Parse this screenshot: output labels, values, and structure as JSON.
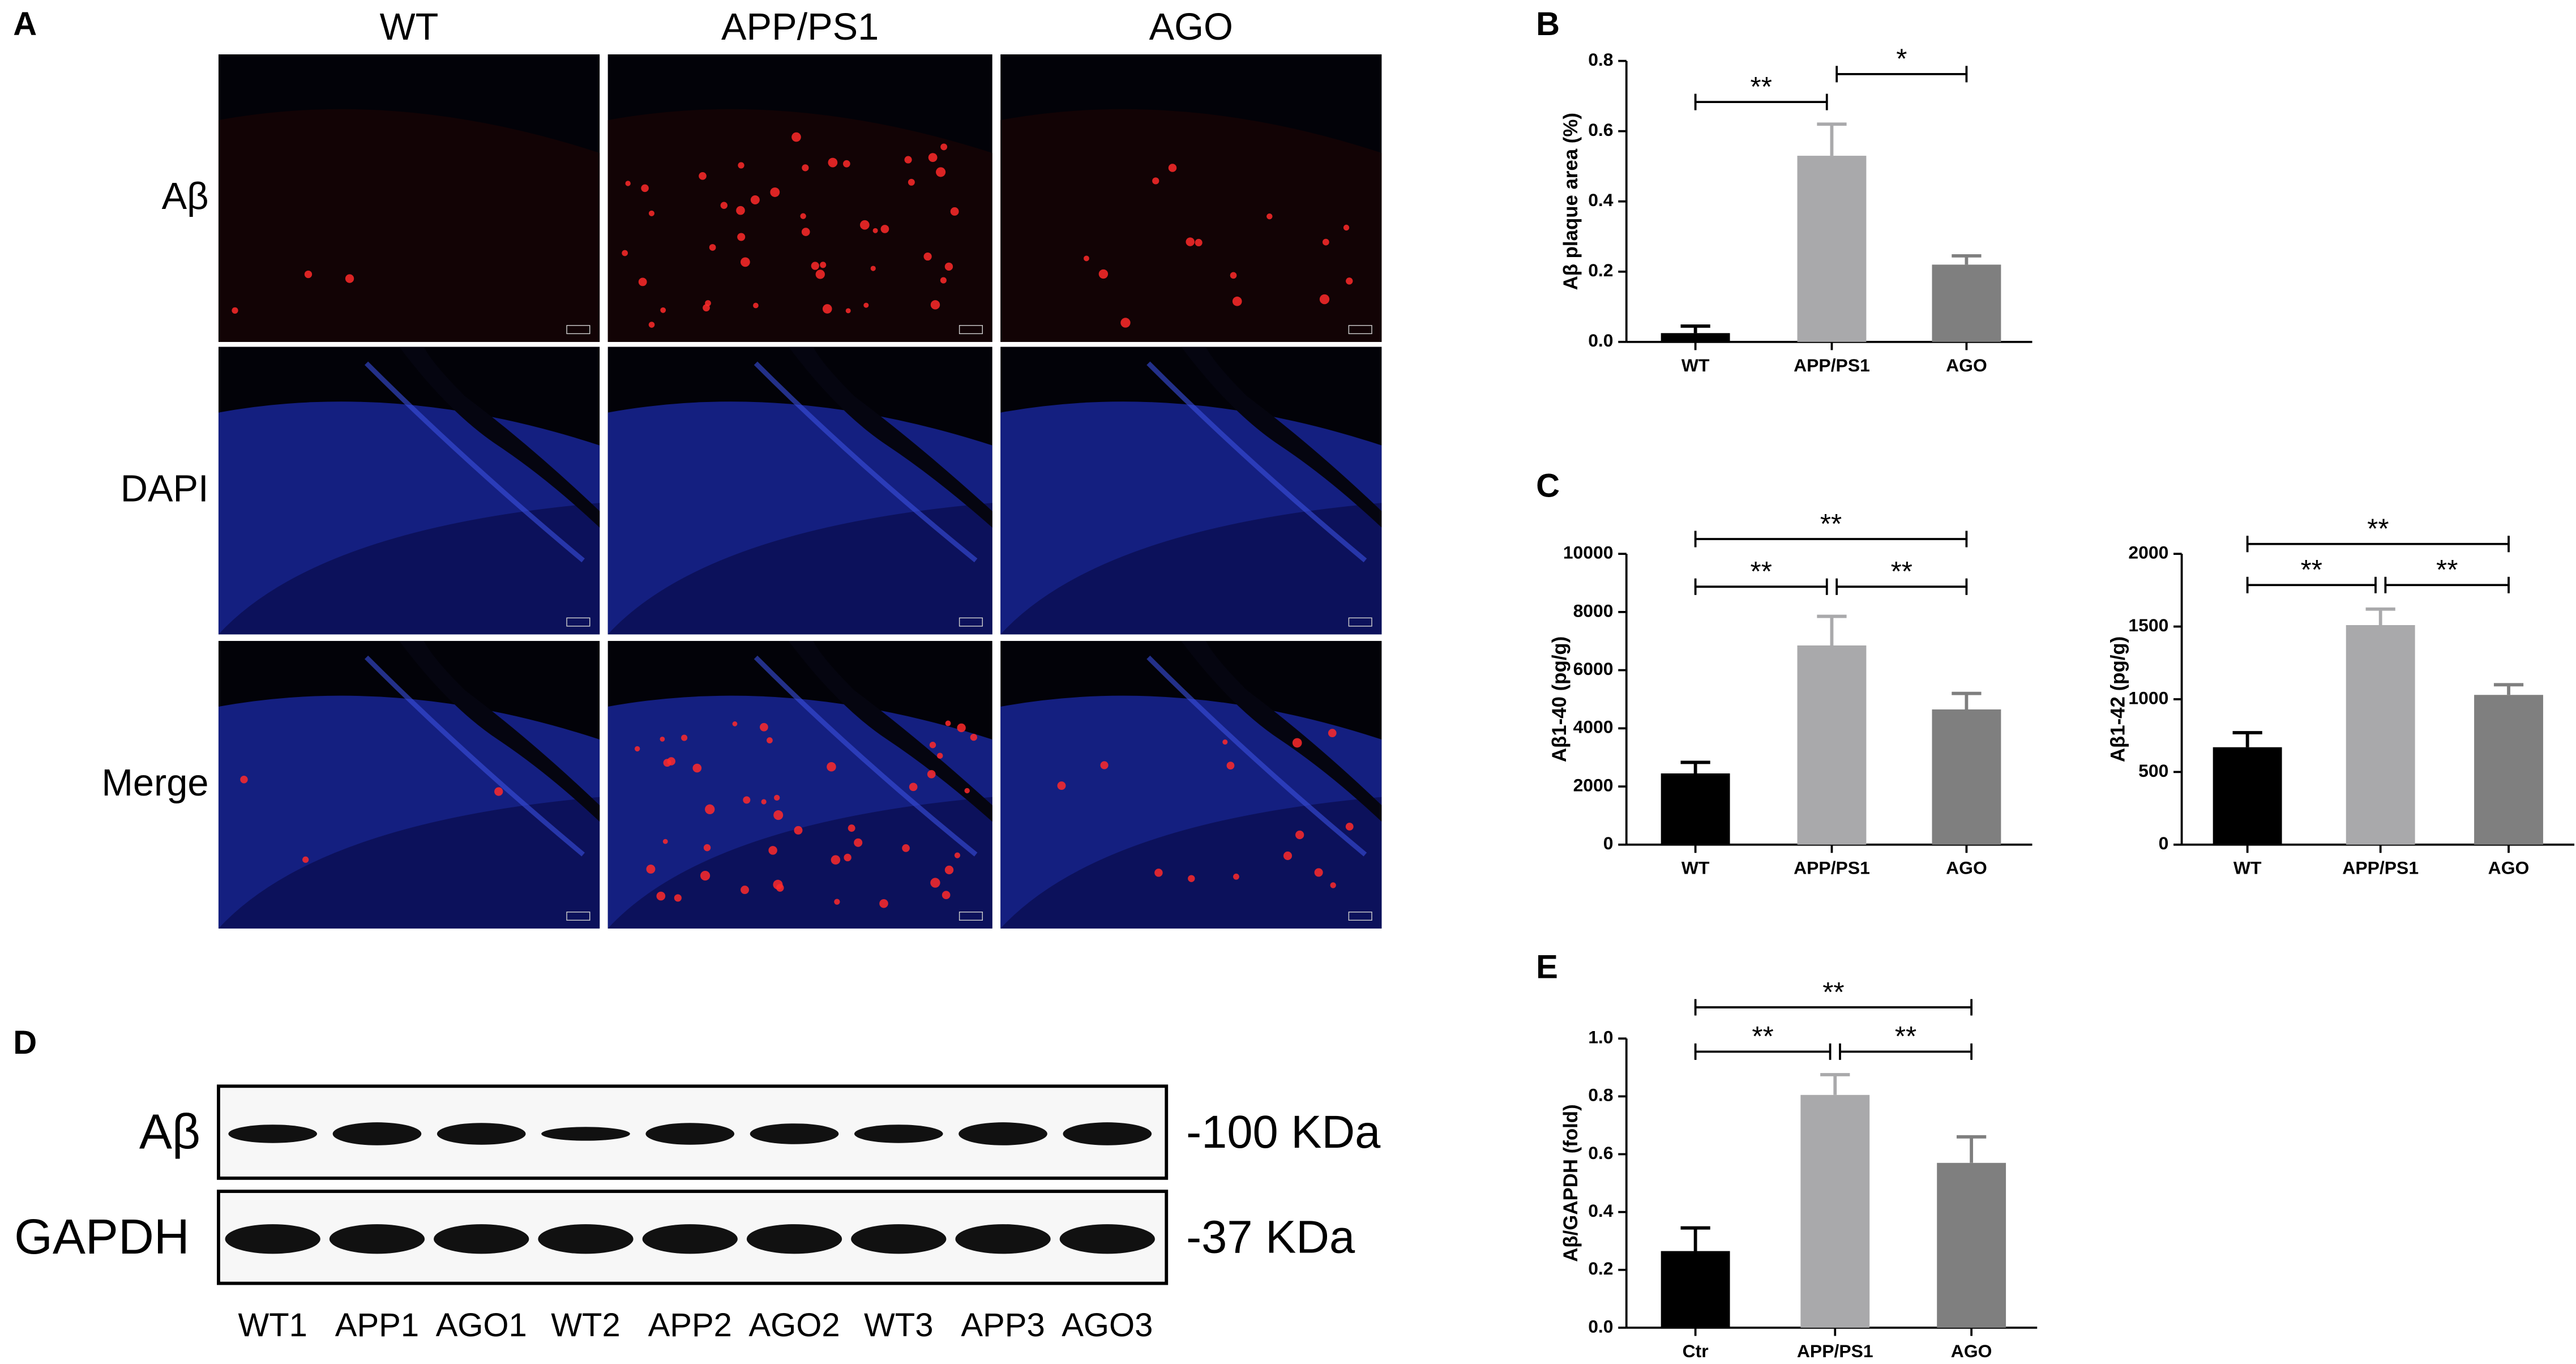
{
  "panels": {
    "a": "A",
    "b": "B",
    "c": "C",
    "d": "D",
    "e": "E"
  },
  "panel_a": {
    "columns": [
      "WT",
      "APP/PS1",
      "AGO"
    ],
    "rows": [
      "Aβ",
      "DAPI",
      "Merge"
    ]
  },
  "panel_d": {
    "rows": [
      "Aβ",
      "GAPDH"
    ],
    "markers": [
      "-100 KDa",
      "-37 KDa"
    ],
    "lanes": [
      "WT1",
      "APP1",
      "AGO1",
      "WT2",
      "APP2",
      "AGO2",
      "WT3",
      "APP3",
      "AGO3"
    ]
  },
  "chart_data": [
    {
      "type": "bar",
      "ylabel": "Aβ plaque area (%)",
      "categories": [
        "WT",
        "APP/PS1",
        "AGO"
      ],
      "values": [
        0.025,
        0.53,
        0.22
      ],
      "errors": [
        0.02,
        0.09,
        0.025
      ],
      "colors": [
        "#000000",
        "#a9a9ab",
        "#7f7f7f"
      ],
      "ylim": [
        0,
        0.8
      ],
      "yticks": [
        {
          "value": 0,
          "label": "0.0"
        },
        {
          "value": 0.2,
          "label": "0.2"
        },
        {
          "value": 0.4,
          "label": "0.4"
        },
        {
          "value": 0.6,
          "label": "0.6"
        },
        {
          "value": 0.8,
          "label": "0.8"
        }
      ],
      "annotations": [
        {
          "text": "**",
          "between": [
            "WT",
            "APP/PS1"
          ]
        },
        {
          "text": "*",
          "between": [
            "APP/PS1",
            "AGO"
          ]
        }
      ]
    },
    {
      "type": "bar",
      "ylabel": "Aβ1-40 (pg/g)",
      "categories": [
        "WT",
        "APP/PS1",
        "AGO"
      ],
      "values": [
        2450,
        6850,
        4650
      ],
      "errors": [
        380,
        1000,
        550
      ],
      "colors": [
        "#000000",
        "#a9a9ab",
        "#7f7f7f"
      ],
      "ylim": [
        0,
        10000
      ],
      "yticks": [
        0,
        2000,
        4000,
        6000,
        8000,
        10000
      ],
      "annotations": [
        {
          "text": "**",
          "between": [
            "WT",
            "AGO"
          ]
        },
        {
          "text": "**",
          "between": [
            "WT",
            "APP/PS1"
          ]
        },
        {
          "text": "**",
          "between": [
            "APP/PS1",
            "AGO"
          ]
        }
      ]
    },
    {
      "type": "bar",
      "ylabel": "Aβ1-42 (pg/g)",
      "categories": [
        "WT",
        "APP/PS1",
        "AGO"
      ],
      "values": [
        670,
        1510,
        1030
      ],
      "errors": [
        100,
        110,
        70
      ],
      "colors": [
        "#000000",
        "#a9a9ab",
        "#7f7f7f"
      ],
      "ylim": [
        0,
        2000
      ],
      "yticks": [
        0,
        500,
        1000,
        1500,
        2000
      ],
      "annotations": [
        {
          "text": "**",
          "between": [
            "WT",
            "AGO"
          ]
        },
        {
          "text": "**",
          "between": [
            "WT",
            "APP/PS1"
          ]
        },
        {
          "text": "**",
          "between": [
            "APP/PS1",
            "AGO"
          ]
        }
      ]
    },
    {
      "type": "bar",
      "ylabel": "Aβ/GAPDH (fold)",
      "categories": [
        "Ctr",
        "APP/PS1",
        "AGO"
      ],
      "values": [
        0.265,
        0.805,
        0.57
      ],
      "errors": [
        0.08,
        0.07,
        0.09
      ],
      "colors": [
        "#000000",
        "#a9a9ab",
        "#7f7f7f"
      ],
      "ylim": [
        0,
        1.0
      ],
      "yticks": [
        {
          "value": 0,
          "label": "0.0"
        },
        {
          "value": 0.2,
          "label": "0.2"
        },
        {
          "value": 0.4,
          "label": "0.4"
        },
        {
          "value": 0.6,
          "label": "0.6"
        },
        {
          "value": 0.8,
          "label": "0.8"
        },
        {
          "value": 1.0,
          "label": "1.0"
        }
      ],
      "annotations": [
        {
          "text": "**",
          "between": [
            "Ctr",
            "AGO"
          ]
        },
        {
          "text": "**",
          "between": [
            "Ctr",
            "APP/PS1"
          ]
        },
        {
          "text": "**",
          "between": [
            "APP/PS1",
            "AGO"
          ]
        }
      ]
    }
  ]
}
